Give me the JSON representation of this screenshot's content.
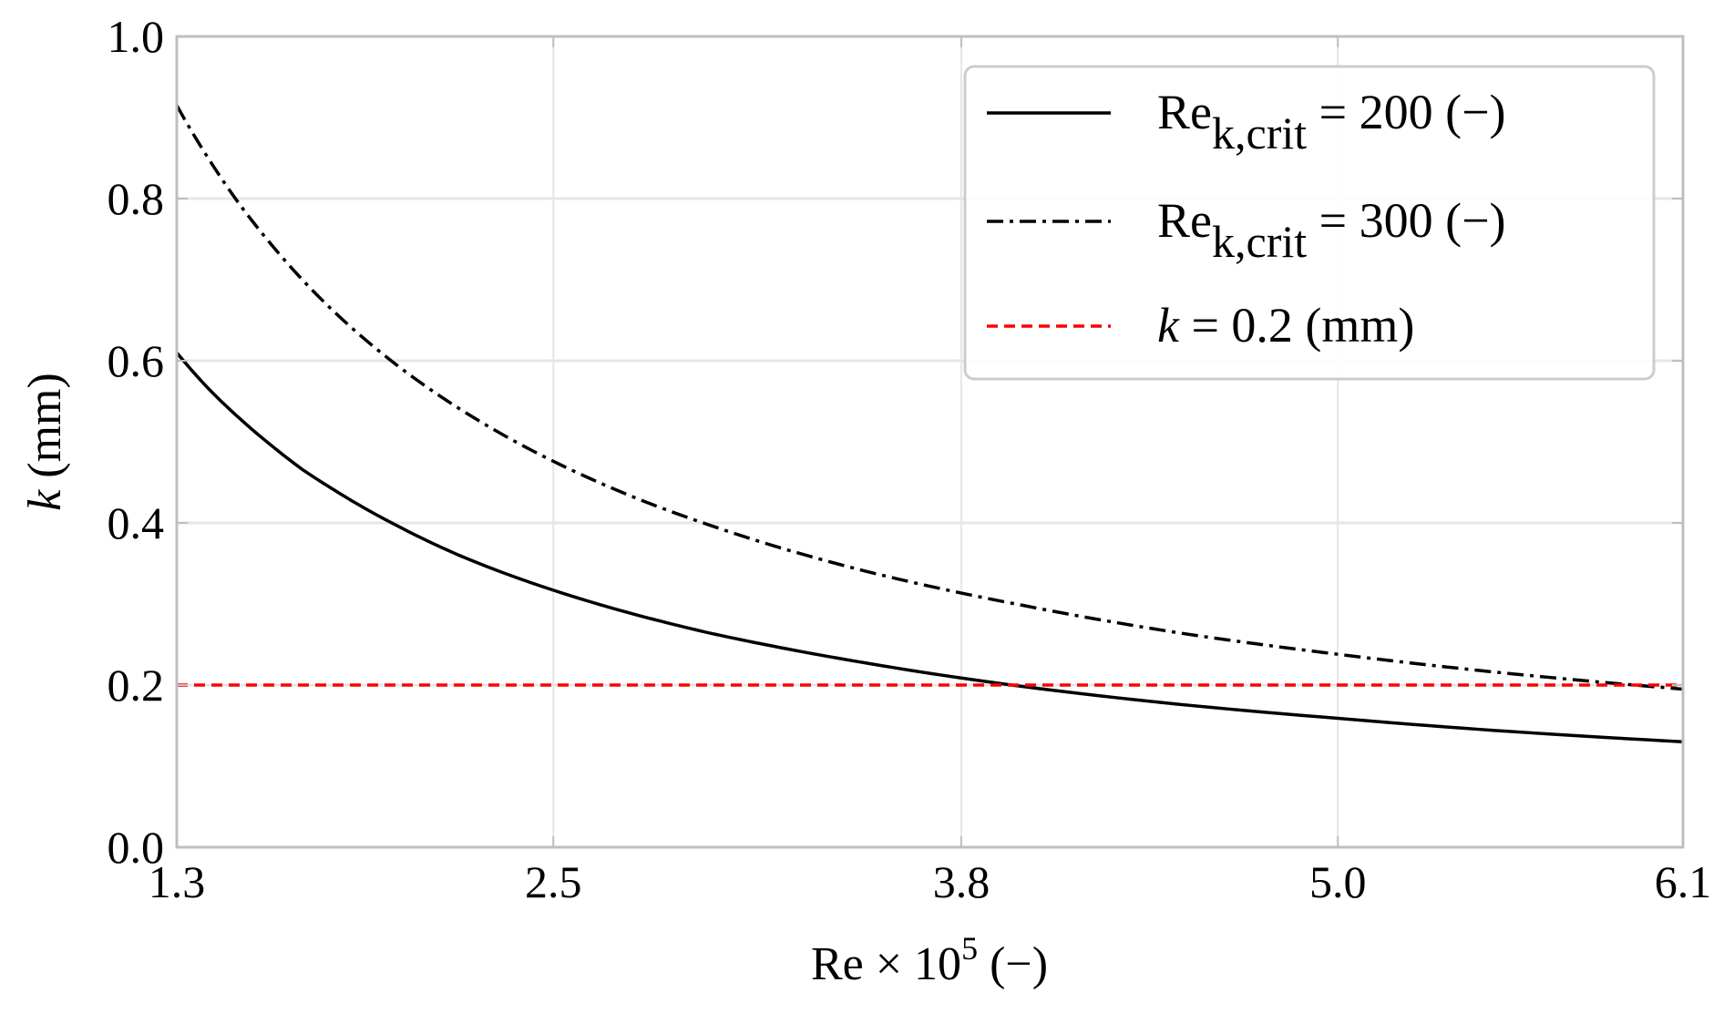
{
  "chart_data": {
    "type": "line",
    "xlabel": "Re × 10",
    "xlabel_exponent": "5",
    "xlabel_unit": "(−)",
    "ylabel_symbol": "k",
    "ylabel_unit": "(mm)",
    "xlim": [
      1.3,
      6.1
    ],
    "ylim": [
      0.0,
      1.0
    ],
    "xticks": [
      1.3,
      2.5,
      3.8,
      5.0,
      6.1
    ],
    "xtick_labels": [
      "1.3",
      "2.5",
      "3.8",
      "5.0",
      "6.1"
    ],
    "yticks": [
      0.0,
      0.2,
      0.4,
      0.6,
      0.8,
      1.0
    ],
    "ytick_labels": [
      "0.0",
      "0.2",
      "0.4",
      "0.6",
      "0.8",
      "1.0"
    ],
    "grid": true,
    "legend_position": "top-right",
    "x": [
      1.3,
      1.4,
      1.5,
      1.6,
      1.7,
      1.8,
      2.0,
      2.2,
      2.5,
      2.8,
      3.0,
      3.2,
      3.5,
      4.0,
      4.5,
      5.0,
      5.5,
      6.1
    ],
    "series": [
      {
        "name": "Re_k,crit = 200 (−)",
        "legend_main": "Re",
        "legend_sub": "k,crit",
        "legend_rest": " = 200 (−)",
        "style": "solid",
        "color": "#000000",
        "values": [
          0.61,
          0.566,
          0.529,
          0.496,
          0.466,
          0.441,
          0.397,
          0.36,
          0.317,
          0.283,
          0.264,
          0.248,
          0.227,
          0.198,
          0.176,
          0.159,
          0.144,
          0.13
        ]
      },
      {
        "name": "Re_k,crit = 300 (−)",
        "legend_main": "Re",
        "legend_sub": "k,crit",
        "legend_rest": " = 300 (−)",
        "style": "dashdot",
        "color": "#000000",
        "values": [
          0.915,
          0.85,
          0.793,
          0.744,
          0.7,
          0.661,
          0.595,
          0.541,
          0.476,
          0.425,
          0.397,
          0.372,
          0.34,
          0.298,
          0.264,
          0.238,
          0.216,
          0.195
        ]
      },
      {
        "name": "k = 0.2 (mm)",
        "legend_main": "k",
        "legend_sub": "",
        "legend_rest": " = 0.2 (mm)",
        "style": "dashed",
        "color": "#ff0000",
        "values": [
          0.2,
          0.2,
          0.2,
          0.2,
          0.2,
          0.2,
          0.2,
          0.2,
          0.2,
          0.2,
          0.2,
          0.2,
          0.2,
          0.2,
          0.2,
          0.2,
          0.2,
          0.2
        ]
      }
    ]
  }
}
